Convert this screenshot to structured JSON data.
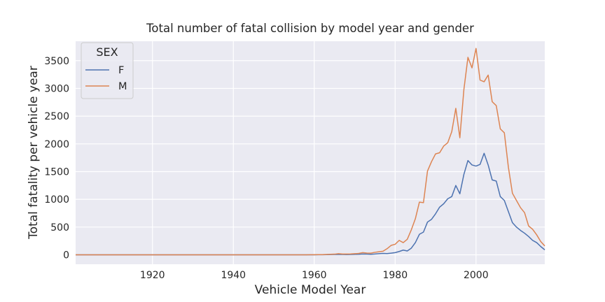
{
  "chart_data": {
    "type": "line",
    "title": "Total number of fatal collision by model year and gender",
    "xlabel": "Vehicle Model Year",
    "ylabel": "Total fatality per vehicle year",
    "xlim": [
      1901,
      2017
    ],
    "ylim": [
      -170,
      3850
    ],
    "xticks": [
      1920,
      1940,
      1960,
      1980,
      2000
    ],
    "yticks": [
      0,
      500,
      1000,
      1500,
      2000,
      2500,
      3000,
      3500
    ],
    "grid": true,
    "legend": {
      "title": "SEX",
      "position": "top-left"
    },
    "x": [
      1901,
      1902,
      1903,
      1904,
      1905,
      1906,
      1907,
      1908,
      1909,
      1910,
      1911,
      1912,
      1913,
      1914,
      1915,
      1916,
      1917,
      1918,
      1919,
      1920,
      1921,
      1922,
      1923,
      1924,
      1925,
      1926,
      1927,
      1928,
      1929,
      1930,
      1931,
      1932,
      1933,
      1934,
      1935,
      1936,
      1937,
      1938,
      1939,
      1940,
      1941,
      1942,
      1943,
      1944,
      1945,
      1946,
      1947,
      1948,
      1949,
      1950,
      1951,
      1952,
      1953,
      1954,
      1955,
      1956,
      1957,
      1958,
      1959,
      1960,
      1961,
      1962,
      1963,
      1964,
      1965,
      1966,
      1967,
      1968,
      1969,
      1970,
      1971,
      1972,
      1973,
      1974,
      1975,
      1976,
      1977,
      1978,
      1979,
      1980,
      1981,
      1982,
      1983,
      1984,
      1985,
      1986,
      1987,
      1988,
      1989,
      1990,
      1991,
      1992,
      1993,
      1994,
      1995,
      1996,
      1997,
      1998,
      1999,
      2000,
      2001,
      2002,
      2003,
      2004,
      2005,
      2006,
      2007,
      2008,
      2009,
      2010,
      2011,
      2012,
      2013,
      2014,
      2015,
      2016,
      2017
    ],
    "series": [
      {
        "name": "F",
        "color": "#4c72b0",
        "values": [
          0,
          0,
          0,
          0,
          0,
          0,
          0,
          0,
          0,
          0,
          0,
          0,
          0,
          0,
          0,
          0,
          0,
          0,
          0,
          0,
          0,
          0,
          0,
          0,
          0,
          0,
          0,
          0,
          0,
          0,
          0,
          0,
          0,
          0,
          0,
          0,
          0,
          0,
          0,
          0,
          0,
          0,
          0,
          0,
          0,
          0,
          0,
          0,
          0,
          0,
          0,
          0,
          0,
          0,
          0,
          0,
          0,
          0,
          0,
          0,
          1,
          2,
          3,
          5,
          6,
          8,
          6,
          5,
          6,
          8,
          10,
          14,
          12,
          10,
          15,
          20,
          25,
          22,
          30,
          40,
          60,
          85,
          70,
          120,
          220,
          370,
          410,
          590,
          640,
          740,
          860,
          920,
          1010,
          1050,
          1250,
          1100,
          1450,
          1700,
          1620,
          1600,
          1630,
          1830,
          1620,
          1350,
          1330,
          1050,
          980,
          780,
          580,
          500,
          440,
          390,
          330,
          260,
          220,
          150,
          90
        ]
      },
      {
        "name": "M",
        "color": "#dd8452",
        "values": [
          0,
          0,
          0,
          0,
          0,
          0,
          0,
          0,
          0,
          0,
          0,
          0,
          0,
          0,
          0,
          0,
          0,
          0,
          0,
          0,
          0,
          0,
          0,
          0,
          0,
          0,
          0,
          0,
          0,
          0,
          0,
          0,
          0,
          0,
          0,
          0,
          0,
          0,
          0,
          0,
          0,
          0,
          0,
          0,
          0,
          0,
          0,
          0,
          0,
          0,
          0,
          0,
          0,
          0,
          0,
          0,
          0,
          0,
          1,
          2,
          3,
          4,
          6,
          9,
          12,
          20,
          15,
          14,
          16,
          20,
          25,
          40,
          32,
          30,
          45,
          55,
          65,
          110,
          170,
          190,
          260,
          220,
          280,
          450,
          650,
          950,
          940,
          1510,
          1680,
          1820,
          1840,
          1960,
          2020,
          2220,
          2640,
          2110,
          2980,
          3560,
          3370,
          3720,
          3150,
          3120,
          3240,
          2760,
          2690,
          2270,
          2200,
          1580,
          1110,
          980,
          850,
          760,
          520,
          460,
          360,
          240,
          160
        ]
      }
    ]
  }
}
